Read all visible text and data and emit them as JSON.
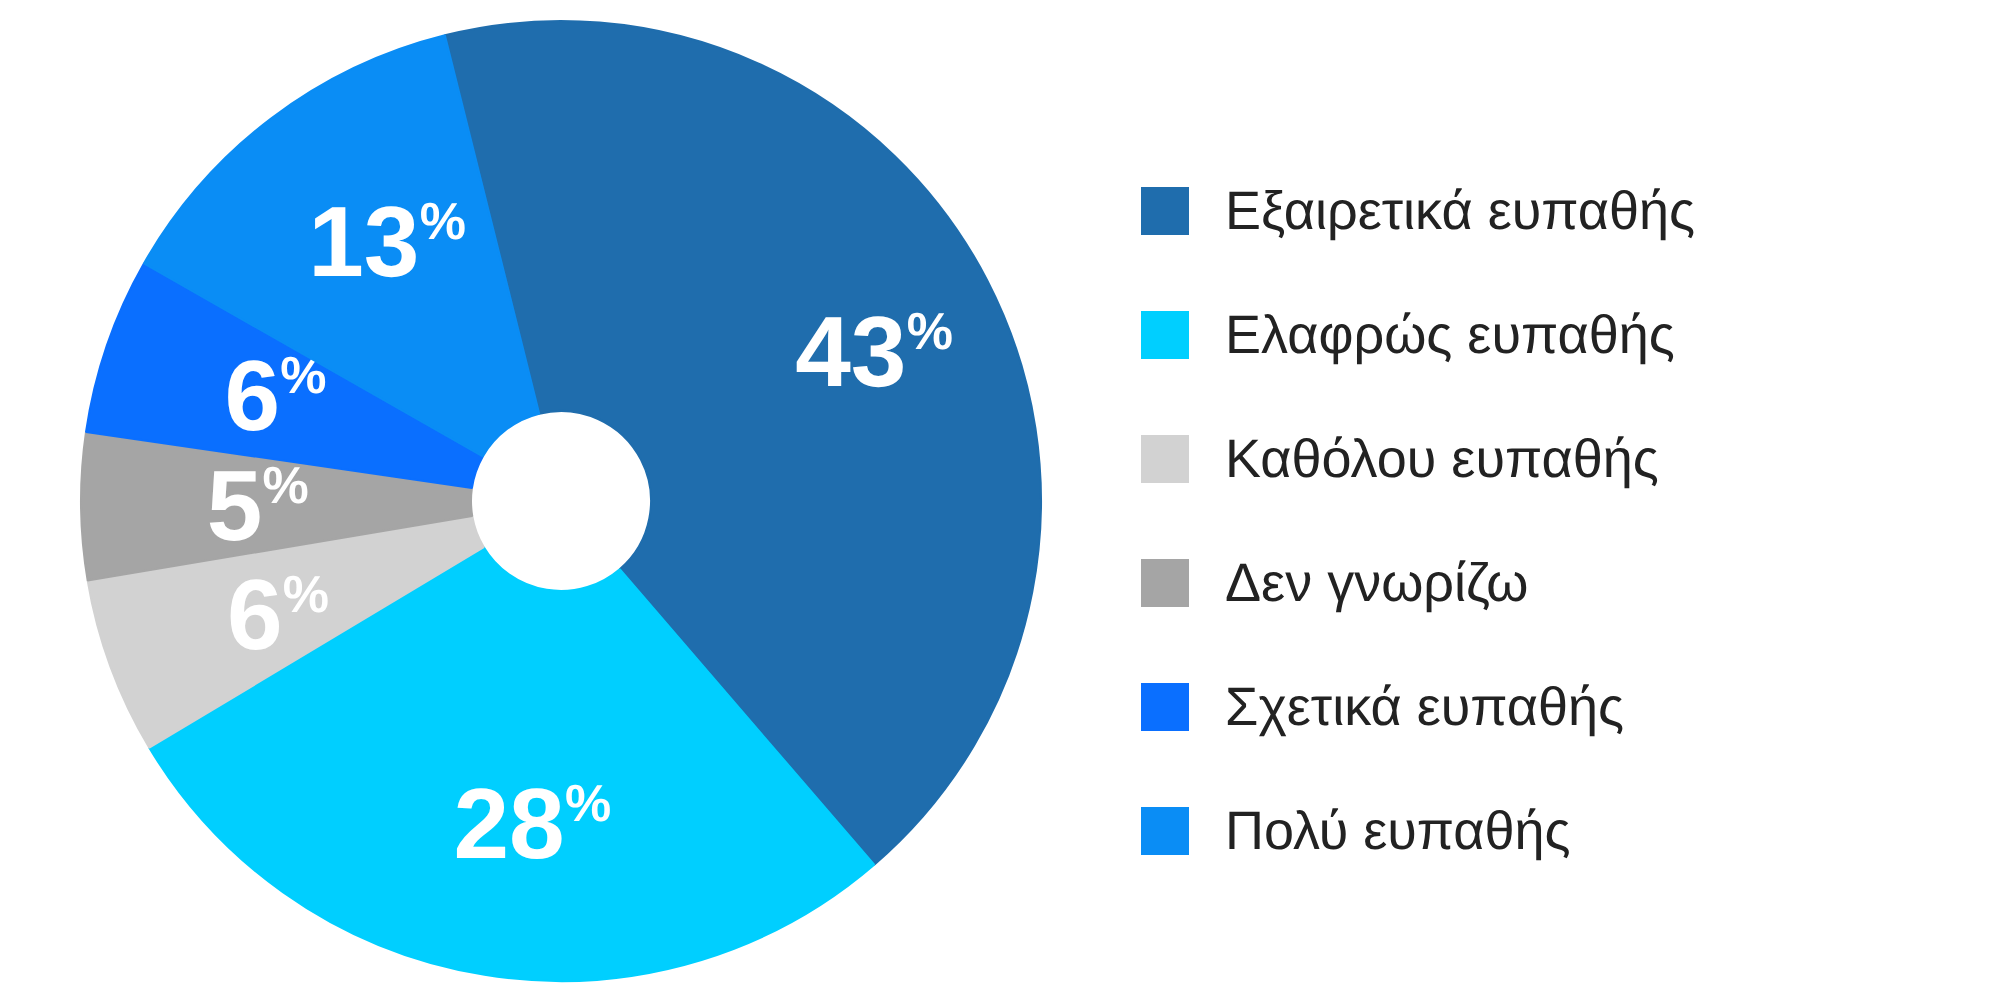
{
  "chart_data": {
    "type": "donut",
    "categories": [
      "Εξαιρετικά ευπαθής",
      "Ελαφρώς ευπαθής",
      "Καθόλου ευπαθής",
      "Δεν γνωρίζω",
      "Σχετικά ευπαθής",
      "Πολύ ευπαθής"
    ],
    "values": [
      43,
      28,
      6,
      5,
      6,
      13
    ],
    "colors": [
      "#1f6dad",
      "#00cfff",
      "#d2d2d2",
      "#a5a5a5",
      "#0a6fff",
      "#0a8df5"
    ],
    "value_labels": [
      "43%",
      "28%",
      "6%",
      "5%",
      "6%",
      "13%"
    ],
    "legend": "right"
  }
}
